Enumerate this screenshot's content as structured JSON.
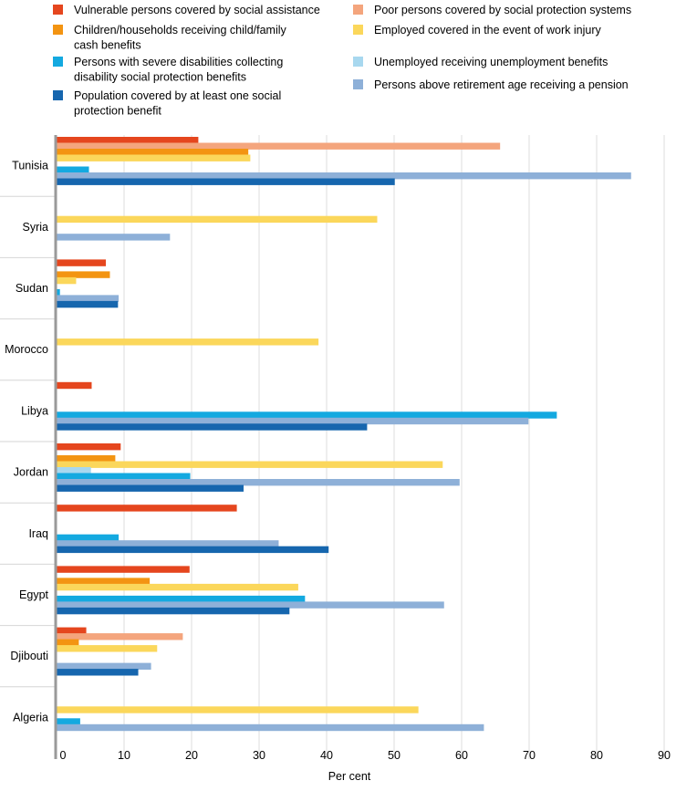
{
  "chart_data": {
    "type": "bar",
    "orientation": "horizontal",
    "title": "",
    "xlabel": "Per cent",
    "ylabel": "",
    "xlim": [
      0,
      90
    ],
    "xticks": [
      0,
      10,
      20,
      30,
      40,
      50,
      60,
      70,
      80,
      90
    ],
    "grid": true,
    "legend_placement": "top",
    "categories": [
      "Tunisia",
      "Syria",
      "Sudan",
      "Morocco",
      "Libya",
      "Jordan",
      "Iraq",
      "Egypt",
      "Djibouti",
      "Algeria"
    ],
    "series": [
      {
        "name": "Vulnerable persons covered by social assistance",
        "color": "#e5461e",
        "values": [
          21,
          null,
          7.3,
          null,
          5.2,
          9.5,
          26.7,
          19.7,
          4.4,
          null
        ]
      },
      {
        "name": "Poor persons covered by social protection systems",
        "color": "#f4a57d",
        "values": [
          65.7,
          null,
          null,
          null,
          null,
          null,
          null,
          null,
          18.7,
          null
        ]
      },
      {
        "name": "Children/households receiving child/family cash benefits",
        "color": "#f39412",
        "values": [
          28.4,
          null,
          7.9,
          null,
          null,
          8.7,
          null,
          13.8,
          3.3,
          null
        ]
      },
      {
        "name": "Employed covered in the event of work injury",
        "color": "#fbd75b",
        "values": [
          28.7,
          47.5,
          2.9,
          38.8,
          null,
          57.2,
          null,
          35.8,
          14.9,
          53.6
        ]
      },
      {
        "name": "Unemployed receiving unemployment benefits",
        "color": "#a8d8ef",
        "values": [
          null,
          null,
          null,
          null,
          null,
          5.1,
          null,
          null,
          null,
          null
        ]
      },
      {
        "name": "Persons with severe disabilities collecting disability social protection benefits",
        "color": "#14a9e0",
        "values": [
          4.8,
          null,
          0.5,
          null,
          74.1,
          19.8,
          9.2,
          36.8,
          null,
          3.5
        ]
      },
      {
        "name": "Persons above retirement age receiving a pension",
        "color": "#8eb0d8",
        "values": [
          85.1,
          16.8,
          9.2,
          null,
          69.9,
          59.7,
          32.9,
          57.4,
          14.0,
          63.3
        ]
      },
      {
        "name": "Population covered by at least one social protection benefit",
        "color": "#1666ae",
        "values": [
          50.1,
          null,
          9.1,
          null,
          46.0,
          27.7,
          40.3,
          34.5,
          12.1,
          null
        ]
      }
    ],
    "legend": {
      "left": [
        {
          "series": 0,
          "lines": [
            "Vulnerable persons covered by social assistance"
          ]
        },
        {
          "series": 2,
          "lines": [
            "Children/households receiving child/family",
            "cash benefits"
          ]
        },
        {
          "series": 5,
          "lines": [
            "Persons with severe disabilities collecting",
            "disability social protection benefits"
          ]
        },
        {
          "series": 7,
          "lines": [
            "Population covered by at least one social",
            "protection benefit"
          ]
        }
      ],
      "right": [
        {
          "series": 1,
          "lines": [
            "Poor persons covered by social protection systems"
          ]
        },
        {
          "series": 3,
          "lines": [
            "Employed covered in the event of work injury"
          ]
        },
        {
          "series": 4,
          "lines": [
            "Unemployed receiving unemployment benefits"
          ]
        },
        {
          "series": 6,
          "lines": [
            "Persons above retirement age receiving a pension"
          ]
        }
      ]
    }
  }
}
